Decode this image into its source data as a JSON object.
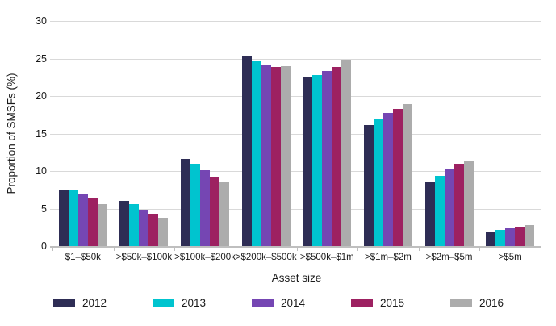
{
  "chart_data": {
    "type": "bar",
    "title": "",
    "xlabel": "Asset size",
    "ylabel": "Proportion of SMSFs (%)",
    "categories": [
      "$1–$50k",
      ">$50k–$100k",
      ">$100k–$200k",
      ">$200k–$500k",
      ">$500k–$1m",
      ">$1m–$2m",
      ">$2m–$5m",
      ">$5m"
    ],
    "series": [
      {
        "name": "2012",
        "values": [
          7.5,
          6.0,
          11.6,
          25.4,
          22.6,
          16.1,
          8.6,
          1.8
        ]
      },
      {
        "name": "2013",
        "values": [
          7.4,
          5.6,
          11.0,
          24.7,
          22.8,
          16.9,
          9.4,
          2.1
        ]
      },
      {
        "name": "2014",
        "values": [
          6.9,
          4.8,
          10.1,
          24.1,
          23.3,
          17.7,
          10.3,
          2.4
        ]
      },
      {
        "name": "2015",
        "values": [
          6.4,
          4.3,
          9.3,
          23.9,
          23.9,
          18.3,
          11.0,
          2.6
        ]
      },
      {
        "name": "2016",
        "values": [
          5.6,
          3.8,
          8.6,
          24.0,
          24.8,
          18.9,
          11.4,
          2.8
        ]
      }
    ],
    "colors": [
      "#2E2D55",
      "#00C4CF",
      "#7546B3",
      "#9D2161",
      "#ACACAC"
    ],
    "yticks": [
      0,
      5,
      10,
      15,
      20,
      25,
      30
    ],
    "ylim": [
      0,
      30
    ],
    "grid": "horizontal",
    "legend_position": "bottom"
  }
}
